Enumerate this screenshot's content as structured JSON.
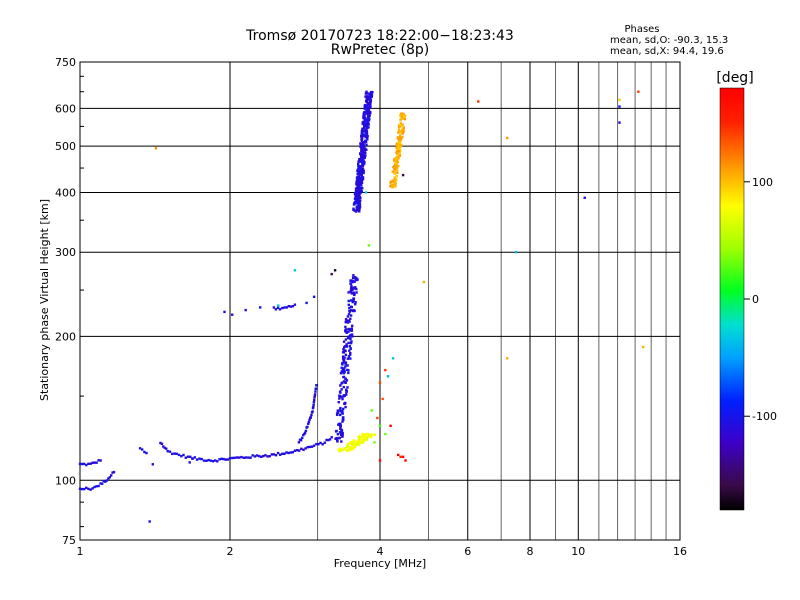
{
  "chart_data": {
    "type": "scatter",
    "title": "Tromsø 20170723 18:22:00−18:23:43",
    "subtitle": "RwPretec (8p)",
    "xlabel": "Frequency [MHz]",
    "ylabel": "Stationary phase Virtual Height [km]",
    "x_scale": "log",
    "y_scale": "log",
    "xlim": [
      1,
      16
    ],
    "ylim": [
      75,
      750
    ],
    "x_ticks": [
      1,
      2,
      4,
      6,
      8,
      10,
      16
    ],
    "x_tick_labels": [
      "1",
      "2",
      "4",
      "6",
      "8",
      "10",
      "16"
    ],
    "x_major_gridlines": [
      2,
      4,
      6,
      8,
      10
    ],
    "x_minor_gridlines": [
      3,
      5,
      7,
      9,
      11,
      12,
      13,
      14,
      15
    ],
    "y_ticks": [
      75,
      100,
      200,
      300,
      400,
      500,
      600,
      750
    ],
    "y_tick_labels": [
      "75",
      "100",
      "200",
      "300",
      "400",
      "500",
      "600",
      "750"
    ],
    "grid": true,
    "phases_box": {
      "title": "Phases",
      "line_o": "mean, sd,O: -90.3, 15.3",
      "line_x": "mean, sd,X:  94.4, 19.6"
    },
    "colorbar": {
      "label": "[deg]",
      "range": [
        -180,
        180
      ],
      "ticks": [
        100,
        0,
        -100
      ],
      "tick_labels": [
        "100",
        "0",
        "-100"
      ],
      "colormap": "rainbow: black/purple (-180) → blue → cyan → green → yellow → orange → red (180)"
    },
    "series": [
      {
        "phase": -110,
        "segments": [
          {
            "kind": "line",
            "points": [
              [
                1.0,
                108
              ],
              [
                1.05,
                108
              ],
              [
                1.1,
                110
              ]
            ]
          },
          {
            "kind": "line",
            "points": [
              [
                1.0,
                96
              ],
              [
                1.05,
                96
              ],
              [
                1.1,
                98
              ],
              [
                1.14,
                101
              ],
              [
                1.17,
                104
              ]
            ]
          },
          {
            "kind": "line",
            "points": [
              [
                1.45,
                120
              ],
              [
                1.5,
                115
              ],
              [
                1.58,
                113
              ],
              [
                1.7,
                111
              ],
              [
                1.85,
                110
              ],
              [
                2.0,
                111
              ],
              [
                2.2,
                112
              ],
              [
                2.45,
                113
              ],
              [
                2.7,
                115
              ],
              [
                2.95,
                118
              ],
              [
                3.1,
                120
              ],
              [
                3.2,
                123
              ]
            ]
          },
          {
            "kind": "line",
            "points": [
              [
                1.32,
                116
              ],
              [
                1.36,
                114
              ]
            ]
          },
          {
            "kind": "points",
            "points": [
              [
                1.4,
                108
              ],
              [
                1.38,
                82
              ],
              [
                1.66,
                109
              ],
              [
                1.68,
                111
              ]
            ]
          },
          {
            "kind": "line",
            "points": [
              [
                2.75,
                120
              ],
              [
                2.82,
                125
              ],
              [
                2.88,
                132
              ],
              [
                2.93,
                140
              ],
              [
                2.96,
                150
              ],
              [
                2.98,
                158
              ]
            ]
          },
          {
            "kind": "line",
            "points": [
              [
                2.45,
                229
              ],
              [
                2.52,
                228
              ],
              [
                2.6,
                230
              ],
              [
                2.7,
                233
              ]
            ]
          },
          {
            "kind": "points",
            "points": [
              [
                1.95,
                225
              ],
              [
                2.02,
                222
              ],
              [
                2.15,
                227
              ],
              [
                2.3,
                230
              ],
              [
                2.85,
                235
              ],
              [
                2.95,
                242
              ]
            ]
          },
          {
            "kind": "band",
            "min_freq": 3.15,
            "max_freq": 3.6,
            "height_range": [
              120,
              270
            ],
            "count": 230
          },
          {
            "kind": "band",
            "min_freq": 3.45,
            "max_freq": 3.85,
            "height_range": [
              365,
              650
            ],
            "count": 420
          },
          {
            "kind": "points",
            "points": [
              [
                10.3,
                390
              ],
              [
                12.1,
                560
              ],
              [
                12.1,
                605
              ]
            ]
          }
        ]
      },
      {
        "phase": 75,
        "segments": [
          {
            "kind": "band",
            "min_freq": 3.1,
            "max_freq": 3.9,
            "height_range": [
              115,
              125
            ],
            "count": 90
          }
        ]
      },
      {
        "phase": 105,
        "segments": [
          {
            "kind": "band",
            "min_freq": 4.1,
            "max_freq": 4.5,
            "height_range": [
              410,
              585
            ],
            "count": 140
          },
          {
            "kind": "points",
            "points": [
              [
                1.42,
                495
              ],
              [
                4.9,
                260
              ],
              [
                7.2,
                520
              ],
              [
                7.2,
                180
              ],
              [
                12.1,
                625
              ],
              [
                13.5,
                190
              ]
            ]
          }
        ]
      },
      {
        "phase": 140,
        "segments": [
          {
            "kind": "points",
            "points": [
              [
                4.0,
                160
              ],
              [
                4.1,
                170
              ],
              [
                4.05,
                148
              ],
              [
                3.95,
                135
              ],
              [
                6.3,
                620
              ],
              [
                13.2,
                650
              ],
              [
                4.4,
                112
              ]
            ]
          }
        ]
      },
      {
        "phase": 175,
        "segments": [
          {
            "kind": "points",
            "points": [
              [
                4.35,
                113
              ],
              [
                4.45,
                112
              ],
              [
                4.5,
                110
              ],
              [
                4.0,
                110
              ],
              [
                4.2,
                130
              ]
            ]
          }
        ]
      },
      {
        "phase": 30,
        "segments": [
          {
            "kind": "points",
            "points": [
              [
                3.8,
                310
              ],
              [
                3.85,
                140
              ],
              [
                4.1,
                125
              ],
              [
                4.0,
                130
              ],
              [
                3.9,
                120
              ]
            ]
          }
        ]
      },
      {
        "phase": -40,
        "segments": [
          {
            "kind": "points",
            "points": [
              [
                2.7,
                275
              ],
              [
                2.5,
                232
              ],
              [
                4.25,
                180
              ],
              [
                4.15,
                165
              ],
              [
                7.5,
                300
              ],
              [
                3.75,
                400
              ]
            ]
          }
        ]
      },
      {
        "phase": -160,
        "segments": [
          {
            "kind": "points",
            "points": [
              [
                3.2,
                270
              ],
              [
                3.25,
                275
              ],
              [
                4.45,
                435
              ]
            ]
          }
        ]
      }
    ]
  }
}
